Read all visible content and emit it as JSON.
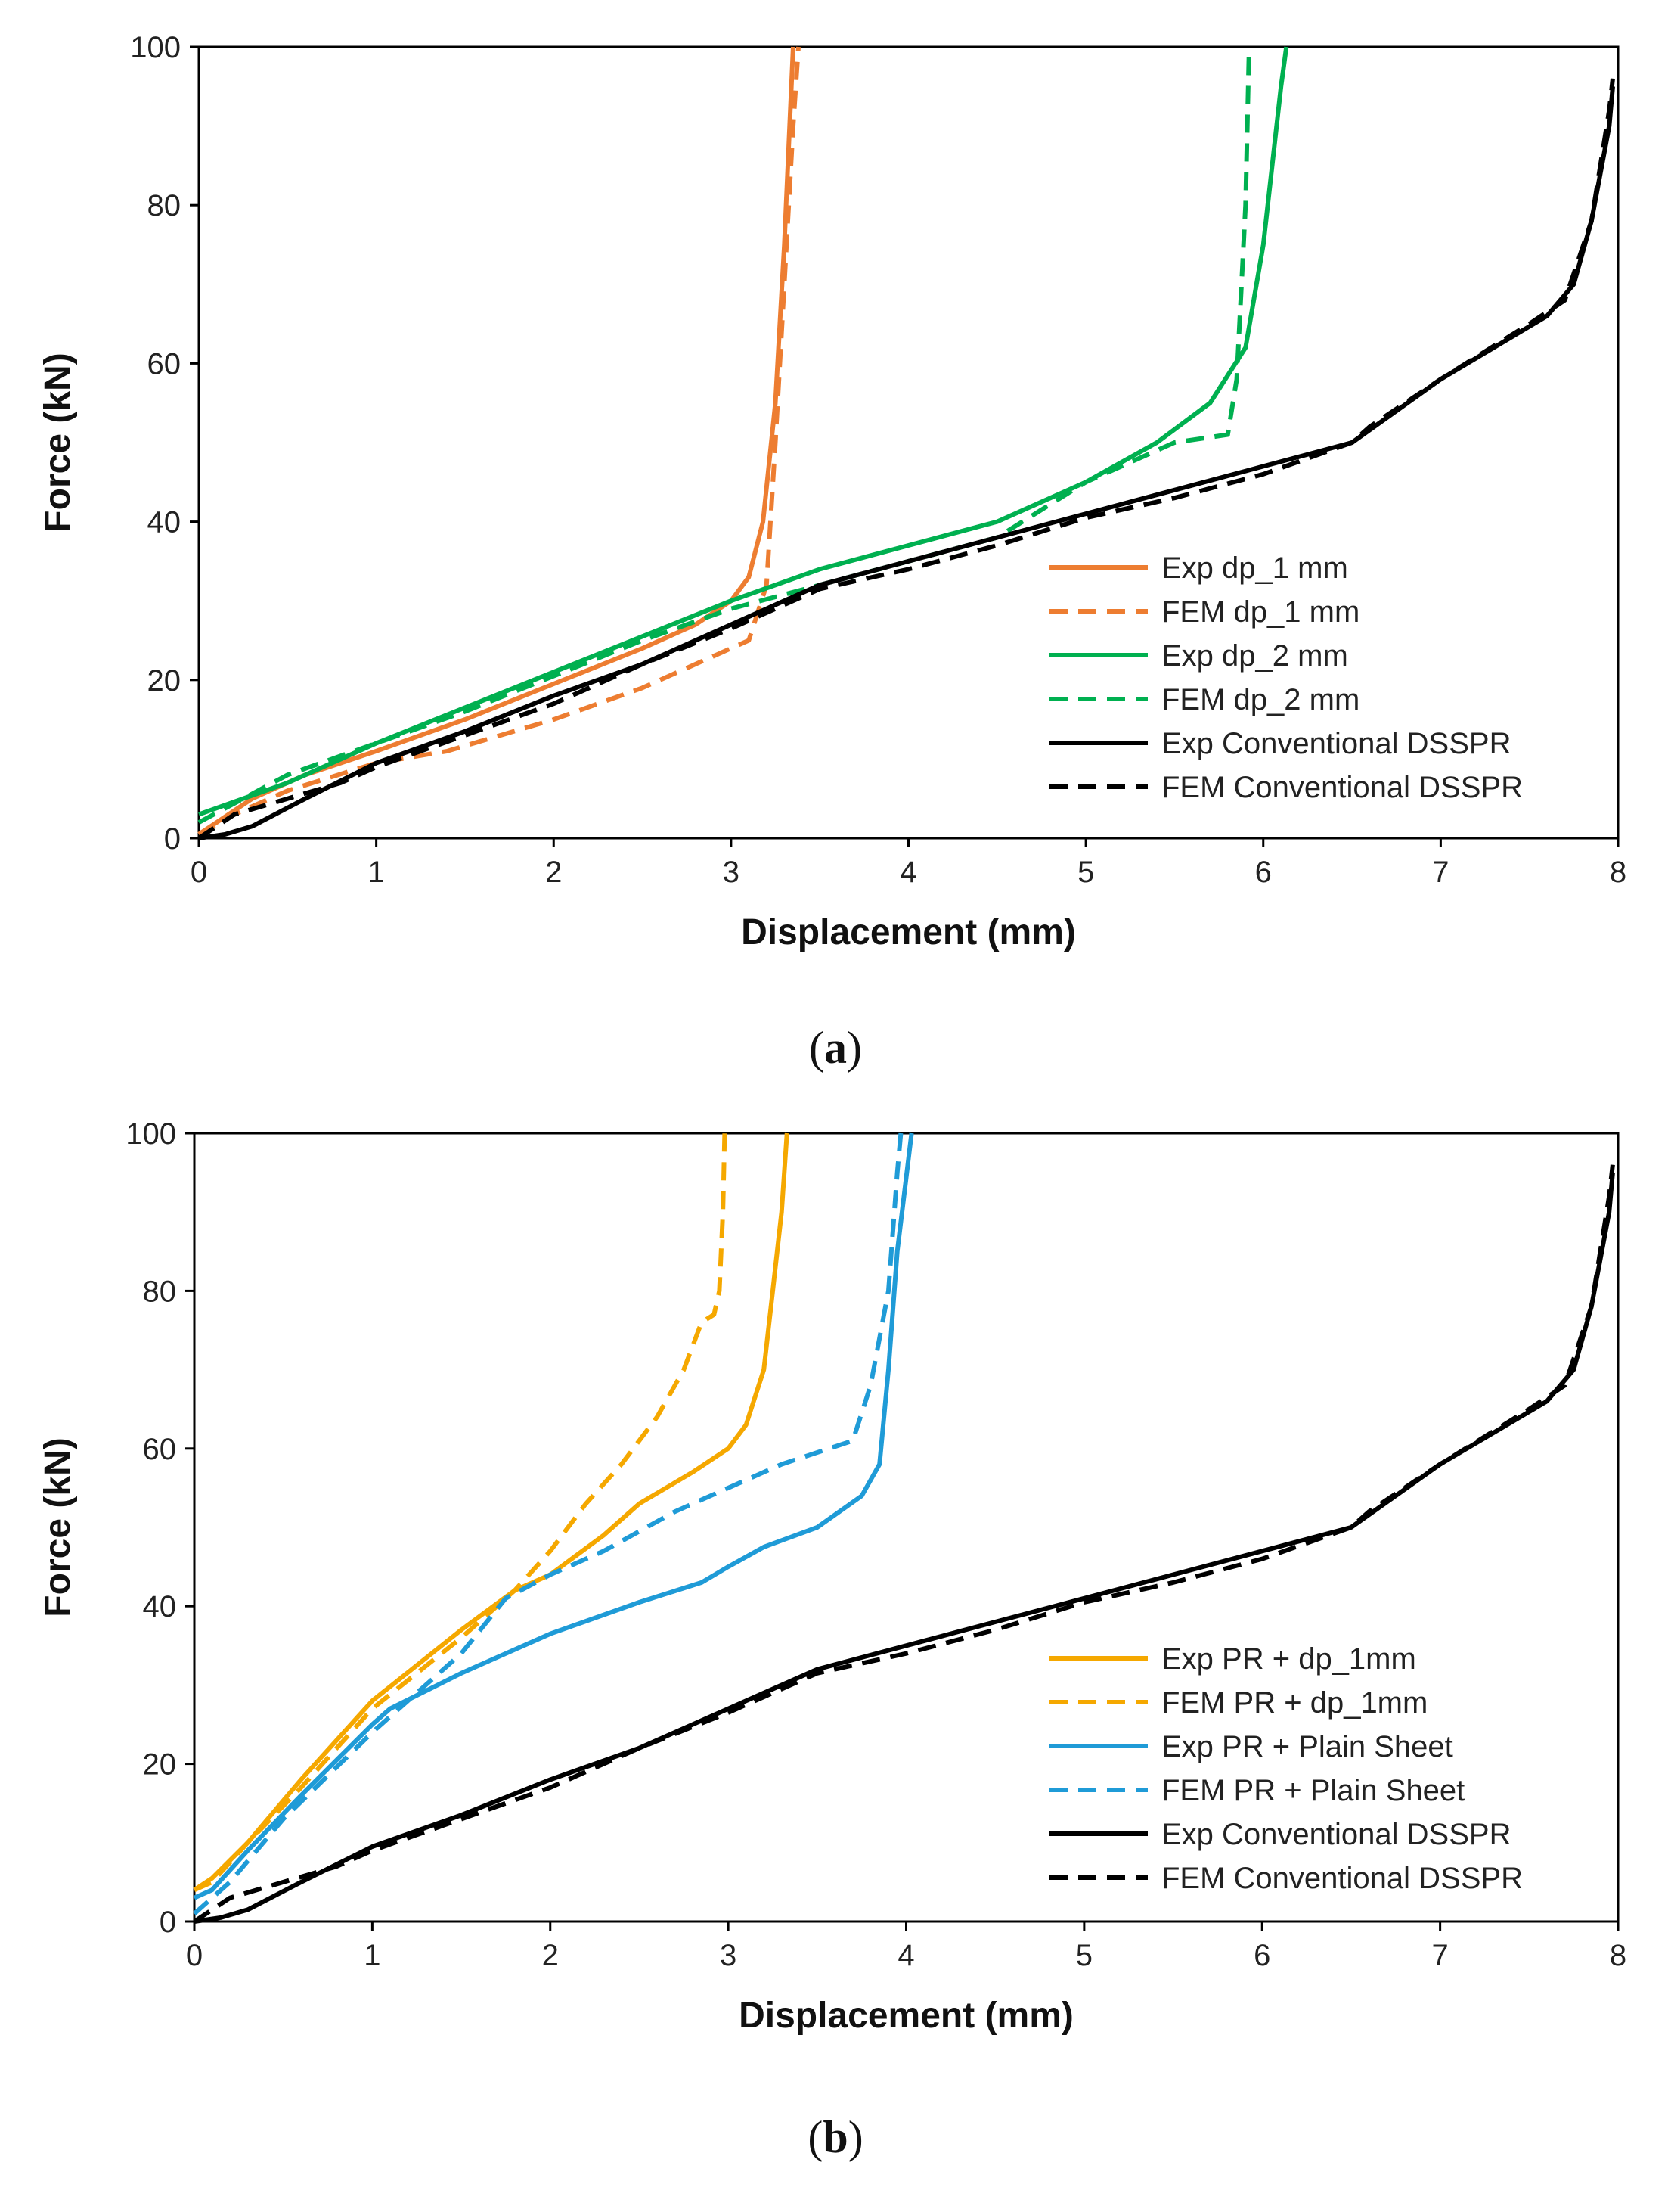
{
  "chart_data": [
    {
      "type": "line",
      "panel_label": "a",
      "xlabel": "Displacement (mm)",
      "ylabel": "Force (kN)",
      "xlim": [
        0,
        8
      ],
      "ylim": [
        0,
        100
      ],
      "x_ticks": [
        0,
        1,
        2,
        3,
        4,
        5,
        6,
        7,
        8
      ],
      "y_ticks": [
        0,
        20,
        40,
        60,
        80,
        100
      ],
      "legend_position": "bottom-right",
      "series": [
        {
          "name": "Exp dp_1 mm",
          "color": "#ED7D31",
          "dash": "solid",
          "points": [
            [
              0,
              0.5
            ],
            [
              0.1,
              2
            ],
            [
              0.3,
              5
            ],
            [
              0.6,
              8
            ],
            [
              1,
              11
            ],
            [
              1.5,
              15
            ],
            [
              2,
              19.5
            ],
            [
              2.5,
              24
            ],
            [
              2.8,
              27
            ],
            [
              3,
              30
            ],
            [
              3.1,
              33
            ],
            [
              3.18,
              40
            ],
            [
              3.25,
              55
            ],
            [
              3.3,
              75
            ],
            [
              3.35,
              100
            ]
          ]
        },
        {
          "name": "FEM dp_1 mm",
          "color": "#ED7D31",
          "dash": "dashed",
          "points": [
            [
              0,
              0.5
            ],
            [
              0.2,
              3
            ],
            [
              0.5,
              6
            ],
            [
              1,
              9.5
            ],
            [
              1.4,
              11
            ],
            [
              2,
              15
            ],
            [
              2.5,
              19
            ],
            [
              3.1,
              25
            ],
            [
              3.2,
              32
            ],
            [
              3.25,
              50
            ],
            [
              3.3,
              70
            ],
            [
              3.35,
              90
            ],
            [
              3.38,
              100
            ]
          ]
        },
        {
          "name": "Exp dp_2 mm",
          "color": "#00B050",
          "dash": "solid",
          "points": [
            [
              0,
              3
            ],
            [
              0.5,
              7
            ],
            [
              1,
              12
            ],
            [
              1.5,
              16.5
            ],
            [
              2,
              21
            ],
            [
              2.5,
              25.5
            ],
            [
              3,
              30
            ],
            [
              3.5,
              34
            ],
            [
              4,
              37
            ],
            [
              4.5,
              40
            ],
            [
              5,
              45
            ],
            [
              5.4,
              50
            ],
            [
              5.7,
              55
            ],
            [
              5.9,
              62
            ],
            [
              6,
              75
            ],
            [
              6.1,
              95
            ],
            [
              6.13,
              100
            ]
          ]
        },
        {
          "name": "FEM dp_2 mm",
          "color": "#00B050",
          "dash": "dashed",
          "points": [
            [
              0,
              2
            ],
            [
              0.5,
              8
            ],
            [
              1,
              12
            ],
            [
              1.5,
              16
            ],
            [
              2,
              20.5
            ],
            [
              2.5,
              25
            ],
            [
              3,
              29
            ],
            [
              3.5,
              32
            ],
            [
              4,
              35
            ],
            [
              4.5,
              38
            ],
            [
              5,
              45
            ],
            [
              5.5,
              50
            ],
            [
              5.8,
              51
            ],
            [
              5.85,
              58
            ],
            [
              5.9,
              80
            ],
            [
              5.92,
              100
            ]
          ]
        },
        {
          "name": "Exp Conventional DSSPR",
          "color": "#000000",
          "dash": "solid",
          "points": [
            [
              0,
              0
            ],
            [
              0.15,
              0.5
            ],
            [
              0.3,
              1.5
            ],
            [
              0.6,
              5
            ],
            [
              1,
              9.5
            ],
            [
              1.5,
              13.5
            ],
            [
              2,
              18
            ],
            [
              2.5,
              22
            ],
            [
              3,
              27
            ],
            [
              3.5,
              32
            ],
            [
              4,
              35
            ],
            [
              4.5,
              38
            ],
            [
              5,
              41
            ],
            [
              5.5,
              44
            ],
            [
              6,
              47
            ],
            [
              6.5,
              50
            ],
            [
              7,
              58
            ],
            [
              7.6,
              66
            ],
            [
              7.75,
              70
            ],
            [
              7.85,
              78
            ],
            [
              7.95,
              90
            ],
            [
              7.97,
              95
            ]
          ]
        },
        {
          "name": "FEM Conventional DSSPR",
          "color": "#000000",
          "dash": "dashed",
          "points": [
            [
              0,
              0
            ],
            [
              0.2,
              3
            ],
            [
              0.5,
              5
            ],
            [
              0.8,
              7
            ],
            [
              1,
              9
            ],
            [
              1.5,
              13
            ],
            [
              2,
              17
            ],
            [
              2.5,
              22
            ],
            [
              3,
              26.5
            ],
            [
              3.5,
              31.5
            ],
            [
              4,
              34
            ],
            [
              4.5,
              37
            ],
            [
              5,
              40.5
            ],
            [
              5.5,
              43
            ],
            [
              6,
              46
            ],
            [
              6.5,
              50
            ],
            [
              6.6,
              52
            ],
            [
              7,
              58
            ],
            [
              7.5,
              65
            ],
            [
              7.7,
              68
            ],
            [
              7.85,
              78
            ],
            [
              7.95,
              92
            ],
            [
              7.97,
              96
            ]
          ]
        }
      ]
    },
    {
      "type": "line",
      "panel_label": "b",
      "xlabel": "Displacement (mm)",
      "ylabel": "Force (kN)",
      "xlim": [
        0,
        8
      ],
      "ylim": [
        0,
        100
      ],
      "x_ticks": [
        0,
        1,
        2,
        3,
        4,
        5,
        6,
        7,
        8
      ],
      "y_ticks": [
        0,
        20,
        40,
        60,
        80,
        100
      ],
      "legend_position": "bottom-right",
      "series": [
        {
          "name": "Exp PR + dp_1mm",
          "color": "#F5A800",
          "dash": "solid",
          "points": [
            [
              0,
              4
            ],
            [
              0.1,
              5.5
            ],
            [
              0.3,
              10
            ],
            [
              0.6,
              18
            ],
            [
              1,
              28
            ],
            [
              1.5,
              37
            ],
            [
              1.8,
              42
            ],
            [
              2,
              44
            ],
            [
              2.3,
              49
            ],
            [
              2.5,
              53
            ],
            [
              2.8,
              57
            ],
            [
              3,
              60
            ],
            [
              3.1,
              63
            ],
            [
              3.2,
              70
            ],
            [
              3.25,
              80
            ],
            [
              3.3,
              90
            ],
            [
              3.33,
              100
            ]
          ]
        },
        {
          "name": "FEM PR + dp_1mm",
          "color": "#F5A800",
          "dash": "dashed",
          "points": [
            [
              0,
              4
            ],
            [
              0.1,
              5
            ],
            [
              0.3,
              10
            ],
            [
              0.6,
              17
            ],
            [
              1,
              27
            ],
            [
              1.5,
              36
            ],
            [
              1.8,
              42
            ],
            [
              2,
              47
            ],
            [
              2.2,
              53
            ],
            [
              2.4,
              58
            ],
            [
              2.6,
              64
            ],
            [
              2.75,
              70
            ],
            [
              2.85,
              76
            ],
            [
              2.92,
              77
            ],
            [
              2.95,
              80
            ],
            [
              2.97,
              90
            ],
            [
              2.98,
              100
            ]
          ]
        },
        {
          "name": "Exp PR + Plain Sheet",
          "color": "#1F9BD7",
          "dash": "solid",
          "points": [
            [
              0,
              3
            ],
            [
              0.1,
              4
            ],
            [
              0.3,
              9
            ],
            [
              0.6,
              16
            ],
            [
              1,
              25
            ],
            [
              1.1,
              27
            ],
            [
              1.5,
              31.5
            ],
            [
              2,
              36.5
            ],
            [
              2.5,
              40.5
            ],
            [
              2.85,
              43
            ],
            [
              3,
              45
            ],
            [
              3.2,
              47.5
            ],
            [
              3.5,
              50
            ],
            [
              3.75,
              54
            ],
            [
              3.85,
              58
            ],
            [
              3.9,
              70
            ],
            [
              3.95,
              85
            ],
            [
              4.03,
              100
            ]
          ]
        },
        {
          "name": "FEM PR + Plain Sheet",
          "color": "#1F9BD7",
          "dash": "dashed",
          "points": [
            [
              0,
              1
            ],
            [
              0.2,
              5
            ],
            [
              0.5,
              13
            ],
            [
              1,
              24
            ],
            [
              1.5,
              34
            ],
            [
              1.75,
              41
            ],
            [
              2,
              44
            ],
            [
              2.3,
              47
            ],
            [
              2.7,
              52
            ],
            [
              3,
              55
            ],
            [
              3.3,
              58
            ],
            [
              3.7,
              61
            ],
            [
              3.8,
              68
            ],
            [
              3.9,
              80
            ],
            [
              3.95,
              95
            ],
            [
              3.97,
              100
            ]
          ]
        },
        {
          "name": "Exp Conventional DSSPR",
          "color": "#000000",
          "dash": "solid",
          "points": [
            [
              0,
              0
            ],
            [
              0.15,
              0.5
            ],
            [
              0.3,
              1.5
            ],
            [
              0.6,
              5
            ],
            [
              1,
              9.5
            ],
            [
              1.5,
              13.5
            ],
            [
              2,
              18
            ],
            [
              2.5,
              22
            ],
            [
              3,
              27
            ],
            [
              3.5,
              32
            ],
            [
              4,
              35
            ],
            [
              4.5,
              38
            ],
            [
              5,
              41
            ],
            [
              5.5,
              44
            ],
            [
              6,
              47
            ],
            [
              6.5,
              50
            ],
            [
              7,
              58
            ],
            [
              7.6,
              66
            ],
            [
              7.75,
              70
            ],
            [
              7.85,
              78
            ],
            [
              7.95,
              90
            ],
            [
              7.97,
              95
            ]
          ]
        },
        {
          "name": "FEM Conventional DSSPR",
          "color": "#000000",
          "dash": "dashed",
          "points": [
            [
              0,
              0
            ],
            [
              0.2,
              3
            ],
            [
              0.5,
              5
            ],
            [
              0.8,
              7
            ],
            [
              1,
              9
            ],
            [
              1.5,
              13
            ],
            [
              2,
              17
            ],
            [
              2.5,
              22
            ],
            [
              3,
              26.5
            ],
            [
              3.5,
              31.5
            ],
            [
              4,
              34
            ],
            [
              4.5,
              37
            ],
            [
              5,
              40.5
            ],
            [
              5.5,
              43
            ],
            [
              6,
              46
            ],
            [
              6.5,
              50
            ],
            [
              6.6,
              52
            ],
            [
              7,
              58
            ],
            [
              7.5,
              65
            ],
            [
              7.7,
              68
            ],
            [
              7.85,
              78
            ],
            [
              7.95,
              92
            ],
            [
              7.97,
              96
            ]
          ]
        }
      ]
    }
  ]
}
